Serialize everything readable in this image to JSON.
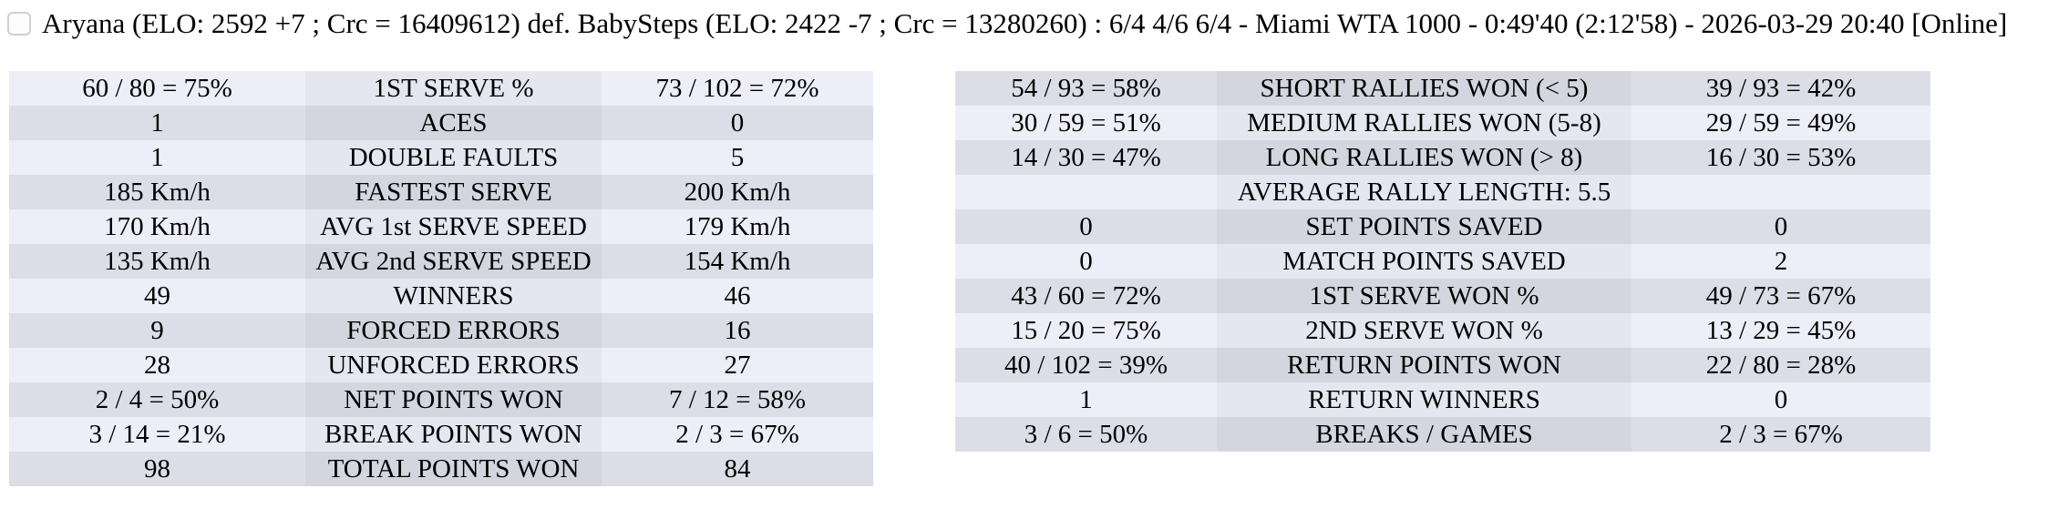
{
  "header": {
    "checkbox_checked": false,
    "text": "Aryana (ELO: 2592 +7 ; Crc = 16409612) def. BabySteps (ELO: 2422 -7 ; Crc = 13280260) : 6/4 4/6 6/4 - Miami WTA 1000 - 0:49'40 (2:12'58) - 2026-03-29 20:40 [Online]"
  },
  "left_table": {
    "rows": [
      [
        "60 / 80 = 75%",
        "1ST SERVE %",
        "73 / 102 = 72%"
      ],
      [
        "1",
        "ACES",
        "0"
      ],
      [
        "1",
        "DOUBLE FAULTS",
        "5"
      ],
      [
        "185 Km/h",
        "FASTEST SERVE",
        "200 Km/h"
      ],
      [
        "170 Km/h",
        "AVG 1st SERVE SPEED",
        "179 Km/h"
      ],
      [
        "135 Km/h",
        "AVG 2nd SERVE SPEED",
        "154 Km/h"
      ],
      [
        "49",
        "WINNERS",
        "46"
      ],
      [
        "9",
        "FORCED ERRORS",
        "16"
      ],
      [
        "28",
        "UNFORCED ERRORS",
        "27"
      ],
      [
        "2 / 4 = 50%",
        "NET POINTS WON",
        "7 / 12 = 58%"
      ],
      [
        "3 / 14 = 21%",
        "BREAK POINTS WON",
        "2 / 3 = 67%"
      ],
      [
        "98",
        "TOTAL POINTS WON",
        "84"
      ]
    ]
  },
  "right_table": {
    "rows": [
      [
        "54 / 93 = 58%",
        "SHORT RALLIES WON (< 5)",
        "39 / 93 = 42%"
      ],
      [
        "30 / 59 = 51%",
        "MEDIUM RALLIES WON (5-8)",
        "29 / 59 = 49%"
      ],
      [
        "14 / 30 = 47%",
        "LONG RALLIES WON (> 8)",
        "16 / 30 = 53%"
      ],
      [
        "",
        "AVERAGE RALLY LENGTH: 5.5",
        ""
      ],
      [
        "0",
        "SET POINTS SAVED",
        "0"
      ],
      [
        "0",
        "MATCH POINTS SAVED",
        "2"
      ],
      [
        "43 / 60 = 72%",
        "1ST SERVE WON %",
        "49 / 73 = 67%"
      ],
      [
        "15 / 20 = 75%",
        "2ND SERVE WON %",
        "13 / 29 = 45%"
      ],
      [
        "40 / 102 = 39%",
        "RETURN POINTS WON",
        "22 / 80 = 28%"
      ],
      [
        "1",
        "RETURN WINNERS",
        "0"
      ],
      [
        "3 / 6 = 50%",
        "BREAKS / GAMES",
        "2 / 3 = 67%"
      ]
    ]
  },
  "colors": {
    "row_light_side": "#eeeef9",
    "row_light_mid": "#e6e6f1",
    "row_dark_side": "#dddde8",
    "row_dark_mid": "#d5d5e0",
    "text": "#000000",
    "page_background": "#ffffff"
  }
}
